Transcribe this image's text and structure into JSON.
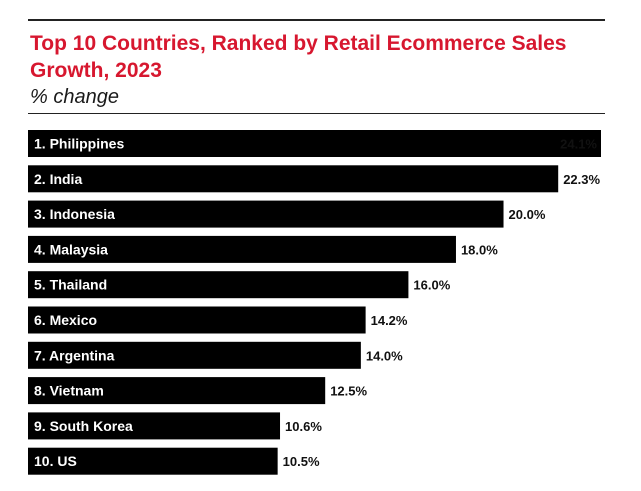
{
  "chart_data": {
    "type": "bar",
    "orientation": "horizontal",
    "title": "Top 10 Countries, Ranked by Retail Ecommerce Sales Growth, 2023",
    "subtitle": "% change",
    "categories": [
      "1. Philippines",
      "2. India",
      "3. Indonesia",
      "4. Malaysia",
      "5. Thailand",
      "6. Mexico",
      "7. Argentina",
      "8. Vietnam",
      "9. South Korea",
      "10. US"
    ],
    "values": [
      24.1,
      22.3,
      20.0,
      18.0,
      16.0,
      14.2,
      14.0,
      12.5,
      10.6,
      10.5
    ],
    "data_labels": [
      "24.1%",
      "22.3%",
      "20.0%",
      "18.0%",
      "16.0%",
      "14.2%",
      "14.0%",
      "12.5%",
      "10.6%",
      "10.5%"
    ],
    "xlim": [
      0,
      24.1
    ],
    "grid": false,
    "legend": "none",
    "bar_color": "#000000",
    "title_color": "#d7172f"
  }
}
